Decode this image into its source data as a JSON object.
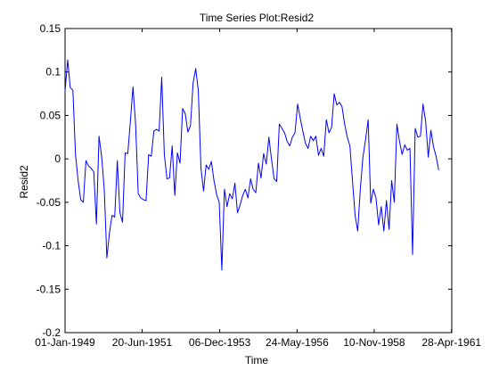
{
  "chart_data": {
    "type": "line",
    "title": "Time Series Plot:Resid2",
    "xlabel": "Time",
    "ylabel": "Resid2",
    "xlim": [
      0,
      148
    ],
    "ylim": [
      -0.2,
      0.15
    ],
    "grid": false,
    "legend": "none",
    "line_color": "#0000ff",
    "x_ticks": [
      {
        "value": 0,
        "label": "01-Jan-1949"
      },
      {
        "value": 29.5,
        "label": "20-Jun-1951"
      },
      {
        "value": 59.2,
        "label": "06-Dec-1953"
      },
      {
        "value": 88.8,
        "label": "24-May-1956"
      },
      {
        "value": 118.3,
        "label": "10-Nov-1958"
      },
      {
        "value": 147.9,
        "label": "28-Apr-1961"
      }
    ],
    "y_ticks": [
      {
        "value": 0.15,
        "label": "0.15"
      },
      {
        "value": 0.1,
        "label": "0.1"
      },
      {
        "value": 0.05,
        "label": "0.05"
      },
      {
        "value": 0,
        "label": "0"
      },
      {
        "value": -0.05,
        "label": "-0.05"
      },
      {
        "value": -0.1,
        "label": "-0.1"
      },
      {
        "value": -0.15,
        "label": "-0.15"
      },
      {
        "value": -0.2,
        "label": "-0.2"
      }
    ],
    "series": [
      {
        "name": "Resid2",
        "x": [
          0,
          1,
          2,
          3,
          4,
          5,
          6,
          7,
          8,
          9,
          10,
          11,
          12,
          13,
          14,
          15,
          16,
          17,
          18,
          19,
          20,
          21,
          22,
          23,
          24,
          25,
          26,
          27,
          28,
          29,
          30,
          31,
          32,
          33,
          34,
          35,
          36,
          37,
          38,
          39,
          40,
          41,
          42,
          43,
          44,
          45,
          46,
          47,
          48,
          49,
          50,
          51,
          52,
          53,
          54,
          55,
          56,
          57,
          58,
          59,
          60,
          61,
          62,
          63,
          64,
          65,
          66,
          67,
          68,
          69,
          70,
          71,
          72,
          73,
          74,
          75,
          76,
          77,
          78,
          79,
          80,
          81,
          82,
          83,
          84,
          85,
          86,
          87,
          88,
          89,
          90,
          91,
          92,
          93,
          94,
          95,
          96,
          97,
          98,
          99,
          100,
          101,
          102,
          103,
          104,
          105,
          106,
          107,
          108,
          109,
          110,
          111,
          112,
          113,
          114,
          115,
          116,
          117,
          118,
          119,
          120,
          121,
          122,
          123,
          124,
          125,
          126,
          127,
          128,
          129,
          130,
          131,
          132,
          133,
          134,
          135,
          136,
          137,
          138,
          139,
          140,
          141,
          142,
          143
        ],
        "values": [
          0.078,
          0.114,
          0.082,
          0.079,
          0.005,
          -0.025,
          -0.047,
          -0.05,
          -0.002,
          -0.008,
          -0.011,
          -0.015,
          -0.075,
          0.026,
          0.003,
          -0.035,
          -0.114,
          -0.085,
          -0.065,
          -0.067,
          -0.002,
          -0.062,
          -0.073,
          0.007,
          0.006,
          0.043,
          0.083,
          0.04,
          -0.04,
          -0.045,
          -0.047,
          -0.048,
          0.005,
          0.003,
          0.032,
          0.034,
          0.032,
          0.094,
          0.005,
          -0.023,
          -0.022,
          0.015,
          -0.042,
          0.007,
          -0.005,
          0.058,
          0.052,
          0.031,
          0.038,
          0.087,
          0.104,
          0.079,
          -0.01,
          -0.037,
          -0.007,
          -0.012,
          -0.003,
          -0.025,
          -0.041,
          -0.05,
          -0.128,
          -0.035,
          -0.055,
          -0.04,
          -0.046,
          -0.028,
          -0.062,
          -0.053,
          -0.042,
          -0.035,
          -0.045,
          -0.023,
          -0.035,
          -0.039,
          -0.005,
          -0.022,
          0.006,
          -0.006,
          0.025,
          0.0,
          -0.023,
          -0.026,
          0.04,
          0.035,
          0.03,
          0.02,
          0.015,
          0.025,
          0.03,
          0.063,
          0.047,
          0.032,
          0.018,
          0.012,
          0.026,
          0.021,
          0.026,
          0.004,
          0.012,
          0.003,
          0.045,
          0.03,
          0.036,
          0.075,
          0.062,
          0.065,
          0.06,
          0.04,
          0.025,
          0.015,
          -0.025,
          -0.065,
          -0.083,
          -0.035,
          0.002,
          0.022,
          0.045,
          -0.051,
          -0.035,
          -0.045,
          -0.076,
          -0.055,
          -0.083,
          -0.048,
          -0.081,
          -0.025,
          -0.05,
          0.04,
          0.02,
          0.005,
          0.016,
          0.01,
          0.012,
          -0.11,
          0.035,
          0.025,
          0.026,
          0.063,
          0.043,
          0.002,
          0.033,
          0.014,
          0.003,
          -0.013
        ]
      }
    ]
  }
}
